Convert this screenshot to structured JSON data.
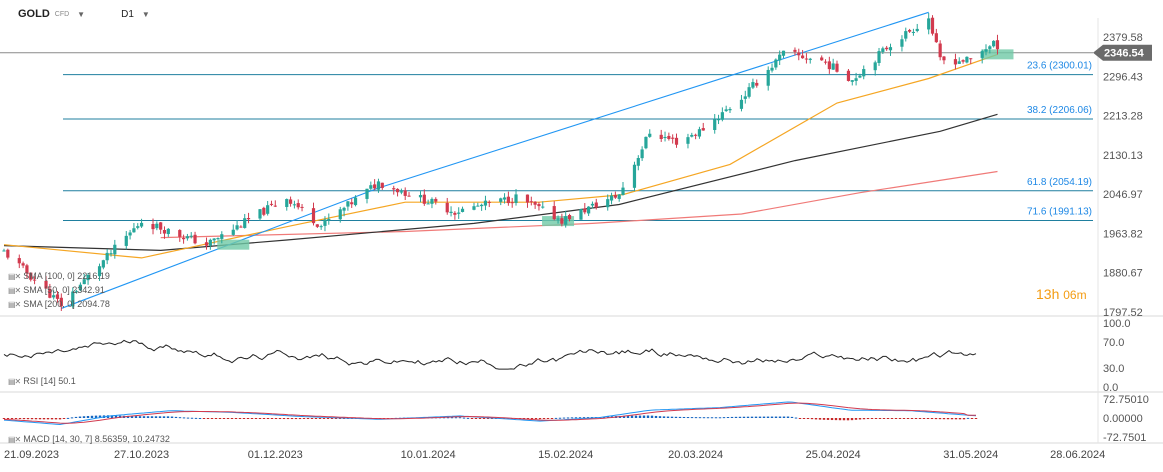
{
  "header": {
    "symbol": "GOLD",
    "instrument_type": "CFD",
    "timeframe": "D1",
    "countdown_hours": "13h",
    "countdown_minutes": "06m"
  },
  "indicators": {
    "sma100": "SMA [100, 0] 2216.19",
    "sma50": "SMA [50, 0] 2342.91",
    "sma200": "SMA [200, 0] 2094.78",
    "rsi": "RSI [14] 50.1",
    "macd": "MACD [14, 30, 7] 8.56359, 10.24732"
  },
  "colors": {
    "up_candle": "#26a69a",
    "down_candle": "#d23a4e",
    "sma50": "#f5a623",
    "sma100": "#333333",
    "sma200": "#f07a78",
    "fib_line": "#1f7f9f",
    "fib_label": "#1e88e5",
    "trendline": "#2196f3",
    "zone": "#6fc9a6",
    "price_tag": "#6b6b6b",
    "macd_line": "#2196f3",
    "signal_line": "#d23a4e"
  },
  "chart_data": {
    "type": "candlestick",
    "x_ticks": [
      "21.09.2023",
      "27.10.2023",
      "01.12.2023",
      "10.01.2024",
      "15.02.2024",
      "20.03.2024",
      "25.04.2024",
      "31.05.2024",
      "28.06.2024"
    ],
    "x_range": [
      "2023-09-21",
      "2024-07-02"
    ],
    "price_axis": {
      "ticks": [
        "2379.58",
        "2296.43",
        "2213.28",
        "2130.13",
        "2046.97",
        "1963.82",
        "1880.67",
        "1797.52"
      ],
      "ylim": [
        1789,
        2420
      ]
    },
    "current_price": "2346.54",
    "fibonacci": [
      {
        "level": "23.6",
        "price": 2300.01,
        "label": "23.6 (2300.01)"
      },
      {
        "level": "38.2",
        "price": 2206.06,
        "label": "38.2 (2206.06)"
      },
      {
        "level": "61.8",
        "price": 2054.19,
        "label": "61.8 (2054.19)"
      },
      {
        "level": "71.6",
        "price": 1991.13,
        "label": "71.6 (1991.13)"
      }
    ],
    "anchors": [
      {
        "date": "2023-09-21",
        "price": 1925
      },
      {
        "date": "2023-10-06",
        "price": 1813
      },
      {
        "date": "2023-10-27",
        "price": 1990
      },
      {
        "date": "2023-11-13",
        "price": 1940
      },
      {
        "date": "2023-12-04",
        "price": 2040
      },
      {
        "date": "2023-12-13",
        "price": 1980
      },
      {
        "date": "2023-12-28",
        "price": 2072
      },
      {
        "date": "2024-01-17",
        "price": 2010
      },
      {
        "date": "2024-02-02",
        "price": 2040
      },
      {
        "date": "2024-02-14",
        "price": 1992
      },
      {
        "date": "2024-02-29",
        "price": 2046
      },
      {
        "date": "2024-03-08",
        "price": 2178
      },
      {
        "date": "2024-03-15",
        "price": 2158
      },
      {
        "date": "2024-03-21",
        "price": 2180
      },
      {
        "date": "2024-04-01",
        "price": 2250
      },
      {
        "date": "2024-04-12",
        "price": 2345
      },
      {
        "date": "2024-04-22",
        "price": 2330
      },
      {
        "date": "2024-04-30",
        "price": 2290
      },
      {
        "date": "2024-05-10",
        "price": 2365
      },
      {
        "date": "2024-05-20",
        "price": 2420
      },
      {
        "date": "2024-05-23",
        "price": 2330
      },
      {
        "date": "2024-05-31",
        "price": 2330
      },
      {
        "date": "2024-06-06",
        "price": 2370
      },
      {
        "date": "2024-06-07",
        "price": 2346
      }
    ],
    "sma50": [
      {
        "date": "2023-09-21",
        "price": 1940
      },
      {
        "date": "2023-10-27",
        "price": 1912
      },
      {
        "date": "2023-12-04",
        "price": 1978
      },
      {
        "date": "2024-01-04",
        "price": 2030
      },
      {
        "date": "2024-02-08",
        "price": 2030
      },
      {
        "date": "2024-03-01",
        "price": 2046
      },
      {
        "date": "2024-03-29",
        "price": 2110
      },
      {
        "date": "2024-04-26",
        "price": 2240
      },
      {
        "date": "2024-05-20",
        "price": 2292
      },
      {
        "date": "2024-06-07",
        "price": 2343
      }
    ],
    "sma100": [
      {
        "date": "2023-09-21",
        "price": 1938
      },
      {
        "date": "2023-11-01",
        "price": 1928
      },
      {
        "date": "2023-12-04",
        "price": 1950
      },
      {
        "date": "2024-01-22",
        "price": 1985
      },
      {
        "date": "2024-02-29",
        "price": 2025
      },
      {
        "date": "2024-04-15",
        "price": 2118
      },
      {
        "date": "2024-05-23",
        "price": 2180
      },
      {
        "date": "2024-06-07",
        "price": 2216
      }
    ],
    "sma200": [
      {
        "date": "2023-11-01",
        "price": 1955
      },
      {
        "date": "2024-01-04",
        "price": 1968
      },
      {
        "date": "2024-02-22",
        "price": 1985
      },
      {
        "date": "2024-04-01",
        "price": 2005
      },
      {
        "date": "2024-05-02",
        "price": 2050
      },
      {
        "date": "2024-06-07",
        "price": 2095
      }
    ],
    "trendlines": [
      {
        "from": {
          "date": "2023-10-06",
          "price": 1805
        },
        "to": {
          "date": "2023-12-28",
          "price": 2060
        }
      },
      {
        "from": {
          "date": "2023-12-28",
          "price": 2060
        },
        "to": {
          "date": "2024-05-20",
          "price": 2432
        }
      }
    ],
    "zones": [
      {
        "date": "2023-11-20",
        "price": 1940
      },
      {
        "date": "2024-02-13",
        "price": 1990
      },
      {
        "date": "2024-06-07",
        "price": 2343
      }
    ],
    "rsi": {
      "ticks": [
        "100.0",
        "70.0",
        "30.0",
        "0.0"
      ],
      "ylim": [
        0,
        100
      ],
      "last": 50.1
    },
    "macd": {
      "ticks": [
        "72.75010",
        "0.00000",
        "-72.7501"
      ],
      "ylim": [
        -72.7501,
        72.7501
      ],
      "macd": 8.56359,
      "signal": 10.24732
    }
  }
}
